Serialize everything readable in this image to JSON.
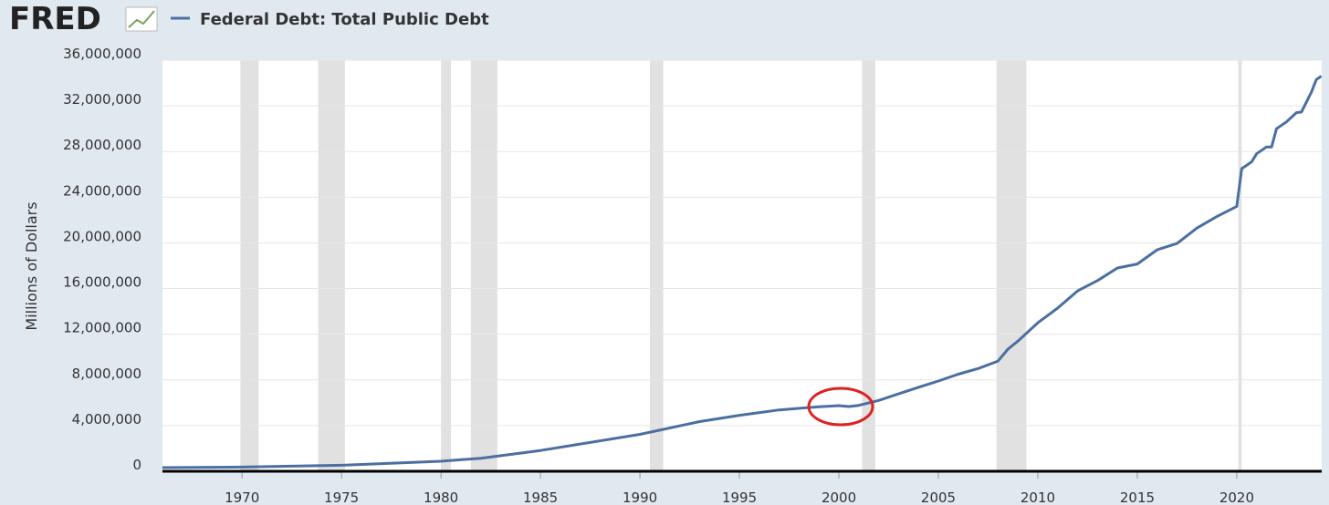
{
  "logo": "FRED",
  "chart_data": {
    "type": "line",
    "title": "Federal Debt: Total Public Debt",
    "y_label": "Millions of Dollars",
    "x": [
      1966,
      1970,
      1975,
      1980,
      1982,
      1985,
      1990,
      1993,
      1995,
      1997,
      1999,
      2000,
      2000.5,
      2001,
      2002,
      2003,
      2004,
      2005,
      2006,
      2007,
      2008,
      2008.5,
      2009,
      2010,
      2011,
      2012,
      2013,
      2014,
      2015,
      2016,
      2017,
      2018,
      2019,
      2020,
      2020.25,
      2020.75,
      2021,
      2021.5,
      2021.75,
      2022,
      2022.5,
      2023,
      2023.25,
      2023.75,
      2024,
      2024.25
    ],
    "series": [
      {
        "name": "Federal Debt: Total Public Debt",
        "color": "#4a6fa0",
        "values": [
          320000,
          370000,
          530000,
          880000,
          1140000,
          1820000,
          3230000,
          4350000,
          4900000,
          5370000,
          5650000,
          5750000,
          5670000,
          5770000,
          6200000,
          6780000,
          7350000,
          7900000,
          8500000,
          9000000,
          9650000,
          10700000,
          11400000,
          13000000,
          14300000,
          15800000,
          16700000,
          17800000,
          18150000,
          19400000,
          19950000,
          21300000,
          22300000,
          23200000,
          26500000,
          27100000,
          27800000,
          28400000,
          28400000,
          30000000,
          30600000,
          31400000,
          31460000,
          33200000,
          34300000,
          34600000
        ]
      }
    ],
    "recessions": [
      [
        1969.92,
        1970.83
      ],
      [
        1973.83,
        1975.17
      ],
      [
        1980.0,
        1980.5
      ],
      [
        1981.5,
        1982.83
      ],
      [
        1990.5,
        1991.17
      ],
      [
        2001.17,
        2001.83
      ],
      [
        2007.92,
        2009.42
      ],
      [
        2020.08,
        2020.25
      ]
    ],
    "xlim": [
      1966,
      2024.27
    ],
    "xticks": [
      1970,
      1975,
      1980,
      1985,
      1990,
      1995,
      2000,
      2005,
      2010,
      2015,
      2020
    ],
    "ylim": [
      0,
      36000000
    ],
    "yticks": [
      0,
      {
        "value": 4000000,
        "label": "4,000,000"
      },
      {
        "value": 8000000,
        "label": "8,000,000"
      },
      {
        "value": 12000000,
        "label": "12,000,000"
      },
      {
        "value": 16000000,
        "label": "16,000,000"
      },
      {
        "value": 20000000,
        "label": "20,000,000"
      },
      {
        "value": 24000000,
        "label": "24,000,000"
      },
      {
        "value": 28000000,
        "label": "28,000,000"
      },
      {
        "value": 32000000,
        "label": "32,000,000"
      },
      {
        "value": 36000000,
        "label": "36,000,000"
      }
    ],
    "grid": true
  }
}
